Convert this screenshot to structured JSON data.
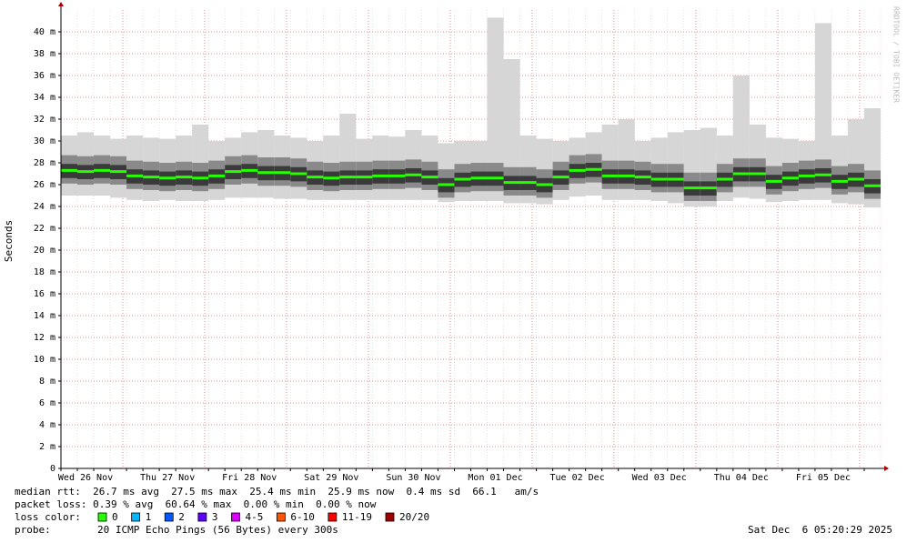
{
  "chart_data": {
    "type": "smoke",
    "y_label": "Seconds",
    "watermark": "RRDTOOL / TOBI OETIKER",
    "ylim": [
      0,
      42
    ],
    "yticks": [
      {
        "value": 0,
        "label": "0"
      },
      {
        "value": 2,
        "label": "2 m"
      },
      {
        "value": 4,
        "label": "4 m"
      },
      {
        "value": 6,
        "label": "6 m"
      },
      {
        "value": 8,
        "label": "8 m"
      },
      {
        "value": 10,
        "label": "10 m"
      },
      {
        "value": 12,
        "label": "12 m"
      },
      {
        "value": 14,
        "label": "14 m"
      },
      {
        "value": 16,
        "label": "16 m"
      },
      {
        "value": 18,
        "label": "18 m"
      },
      {
        "value": 20,
        "label": "20 m"
      },
      {
        "value": 22,
        "label": "22 m"
      },
      {
        "value": 24,
        "label": "24 m"
      },
      {
        "value": 26,
        "label": "26 m"
      },
      {
        "value": 28,
        "label": "28 m"
      },
      {
        "value": 30,
        "label": "30 m"
      },
      {
        "value": 32,
        "label": "32 m"
      },
      {
        "value": 34,
        "label": "34 m"
      },
      {
        "value": 36,
        "label": "36 m"
      },
      {
        "value": 38,
        "label": "38 m"
      },
      {
        "value": 40,
        "label": "40 m"
      }
    ],
    "categories": [
      null,
      "Wed 26 Nov",
      null,
      null,
      null,
      null,
      "Thu 27 Nov",
      null,
      null,
      null,
      null,
      "Fri 28 Nov",
      null,
      null,
      null,
      null,
      "Sat 29 Nov",
      null,
      null,
      null,
      null,
      "Sun 30 Nov",
      null,
      null,
      null,
      null,
      "Mon 01 Dec",
      null,
      null,
      null,
      null,
      "Tue 02 Dec",
      null,
      null,
      null,
      null,
      "Wed 03 Dec",
      null,
      null,
      null,
      null,
      "Thu 04 Dec",
      null,
      null,
      null,
      null,
      "Fri 05 Dec",
      null,
      null,
      null
    ],
    "series": [
      {
        "color": "#26ff00",
        "values": [
          27.3,
          27.2,
          27.3,
          27.2,
          26.8,
          26.7,
          26.6,
          26.7,
          26.6,
          26.8,
          27.2,
          27.3,
          27.1,
          27.1,
          27.0,
          26.7,
          26.6,
          26.7,
          26.7,
          26.8,
          26.8,
          26.9,
          26.7,
          26.0,
          26.5,
          26.6,
          26.6,
          26.2,
          26.2,
          26.0,
          26.7,
          27.3,
          27.4,
          26.8,
          26.8,
          26.7,
          26.5,
          26.5,
          25.7,
          25.7,
          26.5,
          27.0,
          27.0,
          26.3,
          26.6,
          26.8,
          26.9,
          26.3,
          26.5,
          25.9
        ]
      }
    ],
    "smoke": {
      "min": [
        25,
        25,
        25,
        24.8,
        24.6,
        24.5,
        24.6,
        24.5,
        24.5,
        24.6,
        24.8,
        24.8,
        24.8,
        24.7,
        24.7,
        24.6,
        24.6,
        24.6,
        24.6,
        24.6,
        24.6,
        24.6,
        24.6,
        24.4,
        24.5,
        24.5,
        24.5,
        24.3,
        24.3,
        24.2,
        24.6,
        24.9,
        25.0,
        24.6,
        24.6,
        24.6,
        24.5,
        24.3,
        24.0,
        24.0,
        24.5,
        24.8,
        24.7,
        24.4,
        24.5,
        24.6,
        24.6,
        24.3,
        24.2,
        23.9
      ],
      "max": [
        30.5,
        30.8,
        30.5,
        30.2,
        30.5,
        30.3,
        30.2,
        30.5,
        31.5,
        30.0,
        30.3,
        30.8,
        31.0,
        30.5,
        30.3,
        30.0,
        30.5,
        32.5,
        30.2,
        30.5,
        30.4,
        31.0,
        30.5,
        29.8,
        30.0,
        30.0,
        41.3,
        37.5,
        30.5,
        30.2,
        30.0,
        30.3,
        30.8,
        31.5,
        32.0,
        30.0,
        30.3,
        30.8,
        31.0,
        31.2,
        30.5,
        36.0,
        31.5,
        30.3,
        30.2,
        30.0,
        40.8,
        30.5,
        32.0,
        33.0
      ]
    },
    "legend": {
      "median": "median rtt:  26.7 ms avg  27.5 ms max  25.4 ms min  25.9 ms now  0.4 ms sd  66.1   am/s",
      "loss": "packet loss: 0.39 % avg  60.64 % max  0.00 % min  0.00 % now",
      "loss_color_label": "loss color:",
      "loss_colors": [
        {
          "label": "0",
          "color": "#26ff00"
        },
        {
          "label": "1",
          "color": "#00b8ff"
        },
        {
          "label": "2",
          "color": "#0059ff"
        },
        {
          "label": "3",
          "color": "#5e00ff"
        },
        {
          "label": "4-5",
          "color": "#dd00ff"
        },
        {
          "label": "6-10",
          "color": "#ff5500"
        },
        {
          "label": "11-19",
          "color": "#ff0000"
        },
        {
          "label": "20/20",
          "color": "#a10000"
        }
      ],
      "probe_label": "probe:",
      "probe": "20 ICMP Echo Pings (56 Bytes) every 300s",
      "timestamp": "Sat Dec  6 05:20:29 2025"
    }
  }
}
